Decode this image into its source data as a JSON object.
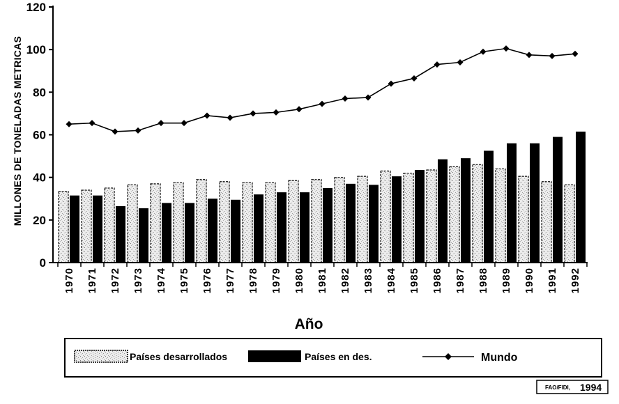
{
  "chart_data": {
    "type": "bar",
    "categories": [
      "1970",
      "1971",
      "1972",
      "1973",
      "1974",
      "1975",
      "1976",
      "1977",
      "1978",
      "1979",
      "1980",
      "1981",
      "1982",
      "1983",
      "1984",
      "1985",
      "1986",
      "1987",
      "1988",
      "1989",
      "1990",
      "1991",
      "1992"
    ],
    "series": [
      {
        "name": "Países desarrollados",
        "type": "bar",
        "color": "#e8e8e8",
        "values": [
          33.5,
          34,
          35,
          36.5,
          37,
          37.5,
          39,
          38,
          37.5,
          37.5,
          38.5,
          39,
          40,
          40.5,
          43,
          42,
          43.5,
          45,
          46,
          44,
          40.5,
          38,
          36.5
        ]
      },
      {
        "name": "Países en des.",
        "type": "bar",
        "color": "#000000",
        "values": [
          31.5,
          31.5,
          26.5,
          25.5,
          28,
          28,
          30,
          29.5,
          32,
          33,
          33,
          35,
          37,
          36.5,
          40.5,
          43.5,
          48.5,
          49,
          52.5,
          56,
          56,
          59,
          61.5
        ]
      },
      {
        "name": "Mundo",
        "type": "line",
        "color": "#000000",
        "values": [
          65,
          65.5,
          61.5,
          62,
          65.5,
          65.5,
          69,
          68,
          70,
          70.5,
          72,
          74.5,
          77,
          77.5,
          84,
          86.5,
          93,
          94,
          99,
          100.5,
          97.5,
          97,
          98
        ]
      }
    ],
    "title": "",
    "xlabel": "Año",
    "ylabel": "MILLONES DE TONELADAS METRICAS",
    "ylim": [
      0,
      120
    ],
    "yticks": [
      0,
      20,
      40,
      60,
      80,
      100,
      120
    ],
    "grid": false,
    "legend_position": "bottom"
  },
  "legend": {
    "developed_label": "Países desarrollados",
    "developing_label": "Países en des.",
    "world_label": "Mundo"
  },
  "source_note": "1994",
  "source_prefix": "FAO/FIDI,"
}
